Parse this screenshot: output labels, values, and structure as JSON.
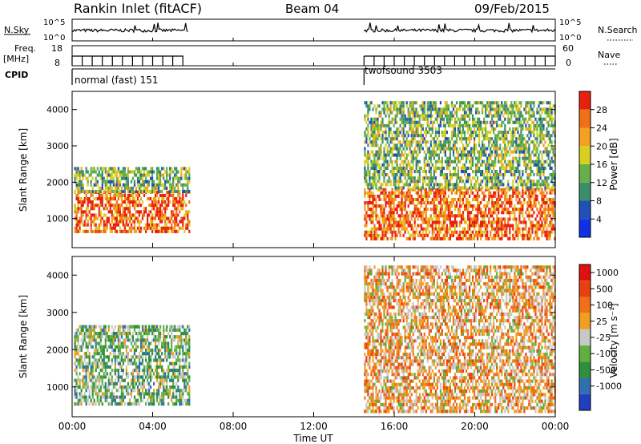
{
  "header": {
    "station": "Rankin Inlet (fitACF)",
    "beam": "Beam 04",
    "date": "09/Feb/2015"
  },
  "strips": {
    "nsky_label": "N.Sky",
    "nsky_ticks": [
      "10^5",
      "10^0"
    ],
    "nsearch_label": "N.Search",
    "nsearch_ticks": [
      "10^5",
      "10^0"
    ],
    "freq_label": "Freq.",
    "freq_unit": "[MHz]",
    "freq_ticks": [
      "18",
      "8"
    ],
    "nave_label": "Nave",
    "nave_ticks": [
      "60",
      "0"
    ],
    "cpid_label": "CPID",
    "programs": [
      {
        "name": "normal (fast) 151",
        "start_hour": 0.0,
        "end_hour": 5.8
      },
      {
        "name": "twofsound 3503",
        "start_hour": 14.5,
        "end_hour": 24.0
      }
    ]
  },
  "time_axis": {
    "label": "Time UT",
    "ticks": [
      "00:00",
      "04:00",
      "08:00",
      "12:00",
      "16:00",
      "20:00",
      "00:00"
    ]
  },
  "chart_data": [
    {
      "type": "heatmap",
      "panel": "power",
      "xlabel": "Time UT",
      "ylabel": "Slant Range [km]",
      "xlim": [
        0,
        24
      ],
      "ylim": [
        200,
        4500
      ],
      "yticks": [
        1000,
        2000,
        3000,
        4000
      ],
      "colorbar": {
        "label": "Power [dB]",
        "ticks": [
          "4",
          "8",
          "12",
          "16",
          "20",
          "24",
          "28"
        ],
        "colors": [
          "#1030e8",
          "#2050b8",
          "#3a8f6a",
          "#66b04a",
          "#d8d020",
          "#f5a020",
          "#f07018",
          "#e82010"
        ]
      },
      "regions": [
        {
          "t0": 0.1,
          "t1": 5.8,
          "r0": 600,
          "r1": 1700,
          "level": 6
        },
        {
          "t0": 0.1,
          "t1": 5.8,
          "r0": 1700,
          "r1": 2400,
          "level": 3
        },
        {
          "t0": 14.5,
          "t1": 24.0,
          "r0": 400,
          "r1": 1800,
          "level": 6
        },
        {
          "t0": 14.5,
          "t1": 24.0,
          "r0": 1800,
          "r1": 4200,
          "level": 3
        }
      ]
    },
    {
      "type": "heatmap",
      "panel": "velocity",
      "xlabel": "Time UT",
      "ylabel": "Slant Range [km]",
      "xlim": [
        0,
        24
      ],
      "ylim": [
        200,
        4500
      ],
      "yticks": [
        1000,
        2000,
        3000,
        4000
      ],
      "colorbar": {
        "label": "Velocity [m s⁻¹]",
        "ticks": [
          "1000",
          "500",
          "100",
          "25",
          "-25",
          "-100",
          "-500",
          "-1000"
        ],
        "colors": [
          "#2040c0",
          "#3070b0",
          "#2e8f3c",
          "#60b040",
          "#c8c8c8",
          "#f0a020",
          "#f07018",
          "#e84010",
          "#e01010"
        ]
      },
      "regions": [
        {
          "t0": 0.1,
          "t1": 5.8,
          "r0": 500,
          "r1": 2600,
          "level": 3
        },
        {
          "t0": 14.5,
          "t1": 24.0,
          "r0": 300,
          "r1": 4200,
          "level": 5
        }
      ]
    }
  ]
}
